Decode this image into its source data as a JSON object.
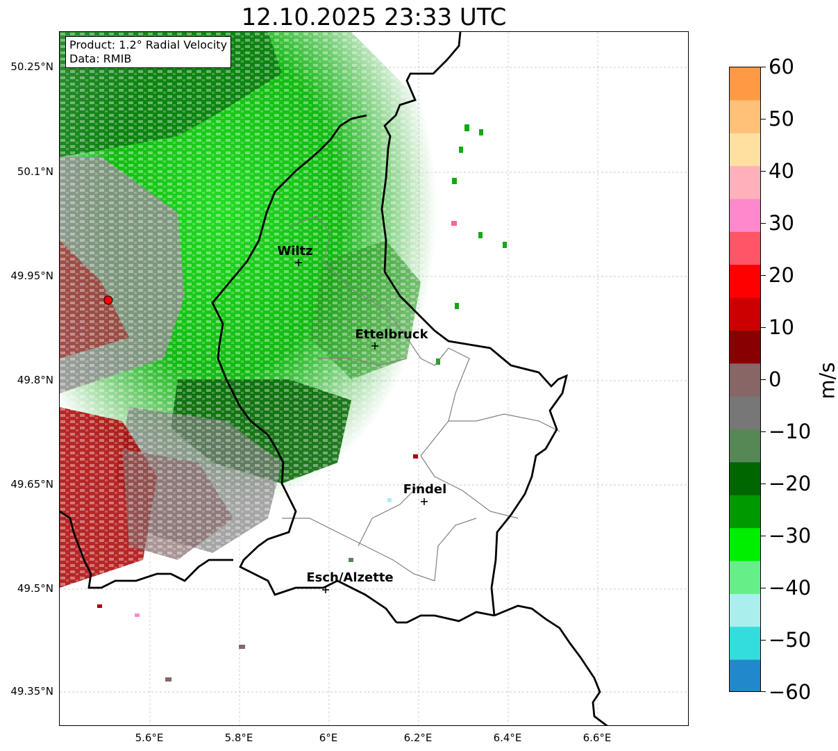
{
  "title": "12.10.2025 23:33 UTC",
  "info_box": {
    "product": "Product: 1.2° Radial Velocity",
    "data": "Data: RMIB"
  },
  "map": {
    "lat_labels": [
      "50.25°N",
      "50.1°N",
      "49.95°N",
      "49.8°N",
      "49.65°N",
      "49.5°N",
      "49.35°N"
    ],
    "lon_labels": [
      "5.6°E",
      "5.8°E",
      "6°E",
      "6.2°E",
      "6.4°E",
      "6.6°E"
    ],
    "cities": [
      {
        "name": "Wiltz"
      },
      {
        "name": "Ettelbruck"
      },
      {
        "name": "Findel"
      },
      {
        "name": "Esch/Alzette"
      }
    ],
    "radar_site_color": "#ff0000"
  },
  "colorbar": {
    "label": "m/s",
    "ticks": [
      "60",
      "50",
      "40",
      "30",
      "20",
      "10",
      "0",
      "−10",
      "−20",
      "−30",
      "−40",
      "−50",
      "−60"
    ],
    "stops": [
      "#ff9944",
      "#ffc077",
      "#ffe0a0",
      "#ffb0bb",
      "#ff88cc",
      "#ff5566",
      "#ff0000",
      "#cc0000",
      "#880000",
      "#886666",
      "#777777",
      "#558855",
      "#006600",
      "#009900",
      "#00ee00",
      "#66ee88",
      "#aaeeee",
      "#33dddd",
      "#2288cc"
    ]
  }
}
